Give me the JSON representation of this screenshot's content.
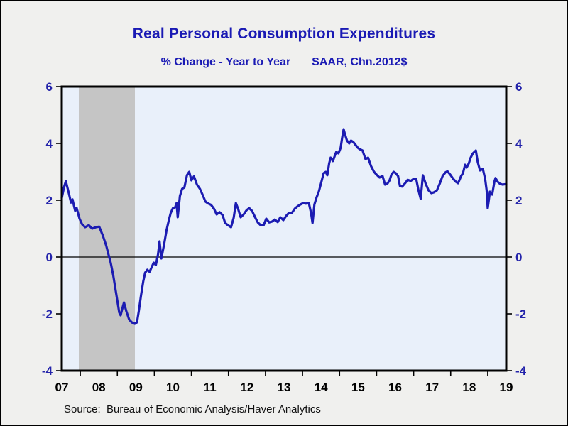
{
  "header": {
    "title": "Real Personal Consumption Expenditures",
    "subtitle_left": "% Change - Year to Year",
    "subtitle_right": "SAAR, Chn.2012$"
  },
  "footer": {
    "source": "Source:  Bureau of Economic Analysis/Haver Analytics"
  },
  "colors": {
    "page_background": "#f0f0ee",
    "plot_background": "#e9f0fa",
    "recession_band": "#c5c5c5",
    "line": "#1c1cb2",
    "title_text": "#1a1ab4",
    "y_label_text": "#2323aa",
    "x_label_text": "#000000",
    "frame": "#000000"
  },
  "chart_data": {
    "type": "line",
    "title": "Real Personal Consumption Expenditures",
    "subtitle": "% Change - Year to Year    SAAR, Chn.2012$",
    "x_axis": {
      "range": [
        2007,
        2019
      ],
      "tick_years": [
        2007,
        2008,
        2009,
        2010,
        2011,
        2012,
        2013,
        2014,
        2015,
        2016,
        2017,
        2018,
        2019
      ],
      "tick_labels": [
        "07",
        "08",
        "09",
        "10",
        "11",
        "12",
        "13",
        "14",
        "15",
        "16",
        "17",
        "18",
        "19"
      ],
      "minor_ticks_at_midyears": true
    },
    "y_axis": {
      "range": [
        -4,
        6
      ],
      "ticks": [
        6,
        4,
        2,
        0,
        -2,
        -4
      ],
      "dual_sided": true,
      "unit": "percent"
    },
    "zero_line": 0,
    "grid": false,
    "legend": false,
    "recession_band": {
      "start": 2007.46,
      "end": 2008.97
    },
    "series": [
      {
        "name": "Real PCE, % change year to year",
        "points": [
          [
            2007.0,
            2.08
          ],
          [
            2007.06,
            2.45
          ],
          [
            2007.11,
            2.67
          ],
          [
            2007.19,
            2.25
          ],
          [
            2007.25,
            1.92
          ],
          [
            2007.29,
            2.03
          ],
          [
            2007.36,
            1.63
          ],
          [
            2007.4,
            1.73
          ],
          [
            2007.48,
            1.35
          ],
          [
            2007.55,
            1.15
          ],
          [
            2007.63,
            1.05
          ],
          [
            2007.73,
            1.12
          ],
          [
            2007.82,
            1.0
          ],
          [
            2007.92,
            1.05
          ],
          [
            2008.01,
            1.07
          ],
          [
            2008.11,
            0.75
          ],
          [
            2008.2,
            0.4
          ],
          [
            2008.26,
            0.1
          ],
          [
            2008.32,
            -0.2
          ],
          [
            2008.39,
            -0.65
          ],
          [
            2008.47,
            -1.3
          ],
          [
            2008.55,
            -1.95
          ],
          [
            2008.59,
            -2.05
          ],
          [
            2008.64,
            -1.78
          ],
          [
            2008.68,
            -1.6
          ],
          [
            2008.74,
            -1.9
          ],
          [
            2008.82,
            -2.2
          ],
          [
            2008.89,
            -2.3
          ],
          [
            2008.97,
            -2.35
          ],
          [
            2009.03,
            -2.3
          ],
          [
            2009.08,
            -1.9
          ],
          [
            2009.14,
            -1.35
          ],
          [
            2009.2,
            -0.85
          ],
          [
            2009.25,
            -0.55
          ],
          [
            2009.31,
            -0.45
          ],
          [
            2009.37,
            -0.52
          ],
          [
            2009.43,
            -0.35
          ],
          [
            2009.48,
            -0.2
          ],
          [
            2009.54,
            -0.28
          ],
          [
            2009.6,
            0.1
          ],
          [
            2009.64,
            0.55
          ],
          [
            2009.69,
            -0.05
          ],
          [
            2009.77,
            0.5
          ],
          [
            2009.83,
            0.95
          ],
          [
            2009.89,
            1.3
          ],
          [
            2009.94,
            1.55
          ],
          [
            2010.0,
            1.72
          ],
          [
            2010.06,
            1.75
          ],
          [
            2010.1,
            1.9
          ],
          [
            2010.13,
            1.4
          ],
          [
            2010.19,
            2.15
          ],
          [
            2010.25,
            2.4
          ],
          [
            2010.31,
            2.45
          ],
          [
            2010.38,
            2.88
          ],
          [
            2010.44,
            3.0
          ],
          [
            2010.5,
            2.7
          ],
          [
            2010.57,
            2.84
          ],
          [
            2010.65,
            2.55
          ],
          [
            2010.73,
            2.4
          ],
          [
            2010.8,
            2.2
          ],
          [
            2010.88,
            1.95
          ],
          [
            2010.96,
            1.88
          ],
          [
            2011.03,
            1.84
          ],
          [
            2011.11,
            1.7
          ],
          [
            2011.18,
            1.5
          ],
          [
            2011.26,
            1.58
          ],
          [
            2011.34,
            1.48
          ],
          [
            2011.41,
            1.2
          ],
          [
            2011.49,
            1.12
          ],
          [
            2011.57,
            1.05
          ],
          [
            2011.64,
            1.38
          ],
          [
            2011.7,
            1.9
          ],
          [
            2011.76,
            1.7
          ],
          [
            2011.83,
            1.4
          ],
          [
            2011.91,
            1.5
          ],
          [
            2011.99,
            1.65
          ],
          [
            2012.06,
            1.72
          ],
          [
            2012.14,
            1.62
          ],
          [
            2012.22,
            1.4
          ],
          [
            2012.29,
            1.22
          ],
          [
            2012.37,
            1.12
          ],
          [
            2012.45,
            1.12
          ],
          [
            2012.52,
            1.35
          ],
          [
            2012.6,
            1.22
          ],
          [
            2012.68,
            1.25
          ],
          [
            2012.75,
            1.32
          ],
          [
            2012.83,
            1.23
          ],
          [
            2012.9,
            1.4
          ],
          [
            2012.98,
            1.3
          ],
          [
            2013.06,
            1.45
          ],
          [
            2013.13,
            1.55
          ],
          [
            2013.21,
            1.55
          ],
          [
            2013.29,
            1.7
          ],
          [
            2013.36,
            1.78
          ],
          [
            2013.44,
            1.85
          ],
          [
            2013.52,
            1.9
          ],
          [
            2013.59,
            1.88
          ],
          [
            2013.67,
            1.9
          ],
          [
            2013.73,
            1.55
          ],
          [
            2013.77,
            1.2
          ],
          [
            2013.82,
            1.85
          ],
          [
            2013.88,
            2.1
          ],
          [
            2013.94,
            2.3
          ],
          [
            2014.01,
            2.65
          ],
          [
            2014.07,
            2.95
          ],
          [
            2014.13,
            3.0
          ],
          [
            2014.17,
            2.88
          ],
          [
            2014.22,
            3.3
          ],
          [
            2014.26,
            3.5
          ],
          [
            2014.32,
            3.38
          ],
          [
            2014.38,
            3.6
          ],
          [
            2014.41,
            3.7
          ],
          [
            2014.47,
            3.65
          ],
          [
            2014.53,
            3.85
          ],
          [
            2014.57,
            4.2
          ],
          [
            2014.61,
            4.5
          ],
          [
            2014.64,
            4.35
          ],
          [
            2014.7,
            4.1
          ],
          [
            2014.76,
            4.0
          ],
          [
            2014.81,
            4.1
          ],
          [
            2014.87,
            4.05
          ],
          [
            2014.93,
            3.95
          ],
          [
            2014.99,
            3.85
          ],
          [
            2015.04,
            3.8
          ],
          [
            2015.12,
            3.75
          ],
          [
            2015.2,
            3.45
          ],
          [
            2015.27,
            3.5
          ],
          [
            2015.35,
            3.2
          ],
          [
            2015.43,
            3.0
          ],
          [
            2015.5,
            2.9
          ],
          [
            2015.58,
            2.8
          ],
          [
            2015.66,
            2.85
          ],
          [
            2015.73,
            2.55
          ],
          [
            2015.79,
            2.58
          ],
          [
            2015.85,
            2.7
          ],
          [
            2015.9,
            2.9
          ],
          [
            2015.96,
            3.0
          ],
          [
            2016.02,
            2.95
          ],
          [
            2016.08,
            2.85
          ],
          [
            2016.13,
            2.5
          ],
          [
            2016.19,
            2.48
          ],
          [
            2016.27,
            2.6
          ],
          [
            2016.34,
            2.72
          ],
          [
            2016.42,
            2.68
          ],
          [
            2016.5,
            2.75
          ],
          [
            2016.57,
            2.75
          ],
          [
            2016.63,
            2.35
          ],
          [
            2016.69,
            2.05
          ],
          [
            2016.75,
            2.88
          ],
          [
            2016.82,
            2.6
          ],
          [
            2016.9,
            2.35
          ],
          [
            2016.98,
            2.25
          ],
          [
            2017.05,
            2.28
          ],
          [
            2017.13,
            2.35
          ],
          [
            2017.21,
            2.6
          ],
          [
            2017.28,
            2.85
          ],
          [
            2017.36,
            2.98
          ],
          [
            2017.41,
            3.02
          ],
          [
            2017.49,
            2.9
          ],
          [
            2017.57,
            2.75
          ],
          [
            2017.64,
            2.65
          ],
          [
            2017.7,
            2.6
          ],
          [
            2017.78,
            2.85
          ],
          [
            2017.83,
            2.95
          ],
          [
            2017.89,
            3.25
          ],
          [
            2017.93,
            3.15
          ],
          [
            2017.99,
            3.3
          ],
          [
            2018.04,
            3.5
          ],
          [
            2018.1,
            3.65
          ],
          [
            2018.18,
            3.75
          ],
          [
            2018.23,
            3.35
          ],
          [
            2018.29,
            3.05
          ],
          [
            2018.37,
            3.1
          ],
          [
            2018.43,
            2.75
          ],
          [
            2018.47,
            2.35
          ],
          [
            2018.5,
            1.72
          ],
          [
            2018.56,
            2.3
          ],
          [
            2018.62,
            2.2
          ],
          [
            2018.68,
            2.65
          ],
          [
            2018.71,
            2.78
          ],
          [
            2018.77,
            2.65
          ],
          [
            2018.83,
            2.58
          ],
          [
            2018.9,
            2.55
          ],
          [
            2019.0,
            2.57
          ]
        ]
      }
    ]
  }
}
